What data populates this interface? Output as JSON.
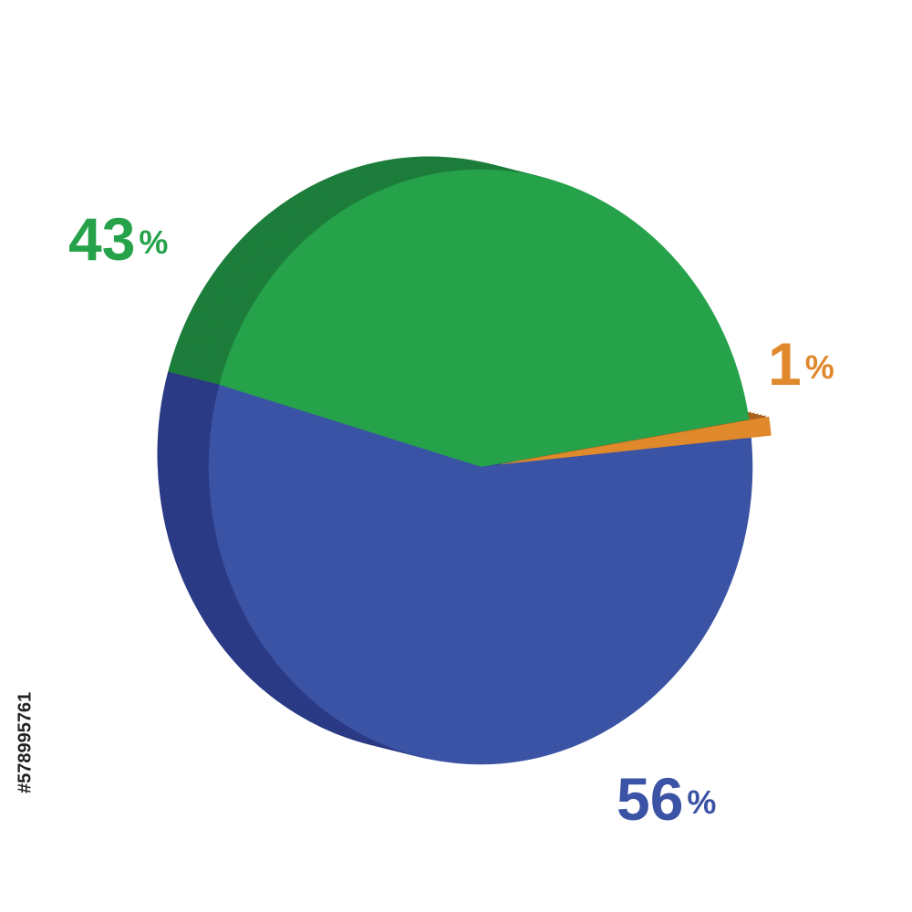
{
  "chart_data": {
    "type": "pie",
    "categories": [
      "43%",
      "1%",
      "56%"
    ],
    "values": [
      43,
      1,
      56
    ],
    "value_labels": [
      "43%",
      "1%",
      "56%"
    ],
    "colors": [
      "#25a24a",
      "#e0892c",
      "#3a53a4"
    ],
    "side_colors": [
      "#1d7d3b",
      "#a8621c",
      "#2b3a85"
    ],
    "watermark_id": "#578995761"
  }
}
